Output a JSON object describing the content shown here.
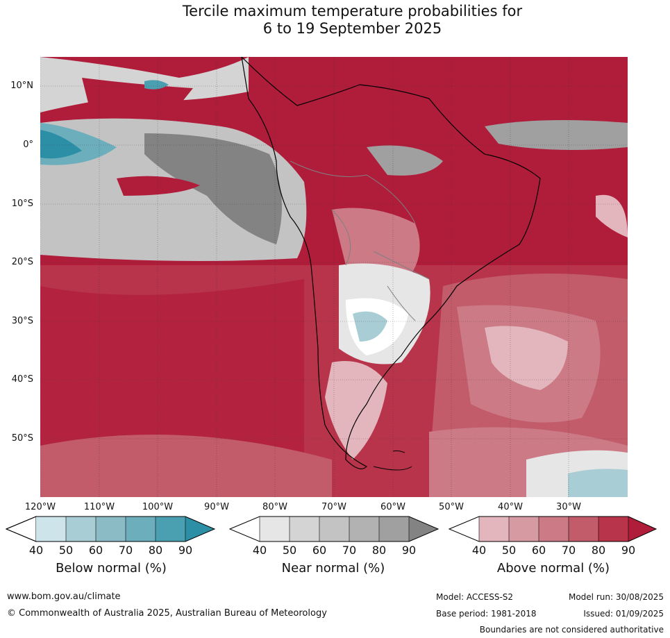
{
  "title_line1": "Tercile maximum temperature probabilities for",
  "title_line2": "6 to 19 September 2025",
  "lat_labels": [
    "10°N",
    "0°",
    "10°S",
    "20°S",
    "30°S",
    "40°S",
    "50°S"
  ],
  "lon_labels": [
    "120°W",
    "110°W",
    "100°W",
    "90°W",
    "80°W",
    "70°W",
    "60°W",
    "50°W",
    "40°W",
    "30°W"
  ],
  "colorbars": [
    {
      "title": "Below normal (%)",
      "ticks": [
        "40",
        "50",
        "60",
        "70",
        "80",
        "90"
      ],
      "colors": [
        "#cde4ea",
        "#a9cdd5",
        "#8bbcc6",
        "#6caebc",
        "#4a9fb1",
        "#2d8fa6"
      ]
    },
    {
      "title": "Near normal (%)",
      "ticks": [
        "40",
        "50",
        "60",
        "70",
        "80",
        "90"
      ],
      "colors": [
        "#e6e6e6",
        "#d4d4d4",
        "#c3c3c3",
        "#b2b2b2",
        "#a0a0a0",
        "#838383"
      ]
    },
    {
      "title": "Above normal (%)",
      "ticks": [
        "40",
        "50",
        "60",
        "70",
        "80",
        "90"
      ],
      "colors": [
        "#e2b6bc",
        "#d69aa3",
        "#cb7a86",
        "#c25b6a",
        "#b8344a",
        "#b01d3b"
      ]
    }
  ],
  "footer": {
    "website": "www.bom.gov.au/climate",
    "copyright": "© Commonwealth of Australia 2025, Australian Bureau of Meteorology",
    "model": "Model: ACCESS-S2",
    "model_run": "Model run: 30/08/2025",
    "base_period": "Base period: 1981-2018",
    "issued": "Issued: 01/09/2025",
    "boundaries": "Boundaries are not considered authoritative"
  }
}
